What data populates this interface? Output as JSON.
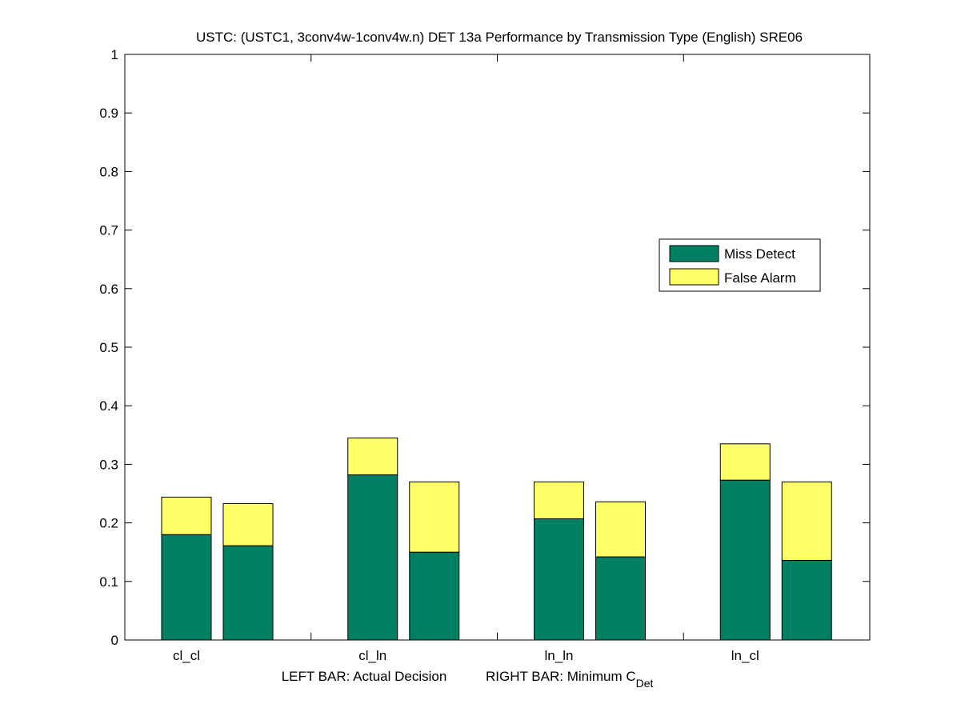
{
  "chart_data": {
    "type": "bar",
    "stacked": true,
    "title": "USTC: (USTC1, 3conv4w-1conv4w.n) DET 13a Performance by Transmission Type (English) SRE06",
    "xlabel_left": "LEFT BAR: Actual Decision",
    "xlabel_right_main": "RIGHT BAR: Minimum C",
    "xlabel_right_sub": "Det",
    "ylabel": "",
    "ylim": [
      0,
      1
    ],
    "yticks": [
      0,
      0.1,
      0.2,
      0.3,
      0.4,
      0.5,
      0.6,
      0.7,
      0.8,
      0.9,
      1
    ],
    "ytick_labels": [
      "0",
      "0.1",
      "0.2",
      "0.3",
      "0.4",
      "0.5",
      "0.6",
      "0.7",
      "0.8",
      "0.9",
      "1"
    ],
    "categories": [
      "cl_cl",
      "cl_ln",
      "ln_ln",
      "ln_cl"
    ],
    "bar_roles": [
      "Actual Decision",
      "Minimum CDet"
    ],
    "series": [
      {
        "name": "Miss Detect",
        "color": "#007f63",
        "actual": [
          0.18,
          0.282,
          0.207,
          0.273
        ],
        "minimum": [
          0.161,
          0.15,
          0.142,
          0.136
        ]
      },
      {
        "name": "False Alarm",
        "color": "#ffff66",
        "actual": [
          0.064,
          0.063,
          0.063,
          0.062
        ],
        "minimum": [
          0.072,
          0.12,
          0.094,
          0.134
        ]
      }
    ],
    "legend": {
      "position": "right-middle",
      "entries": [
        "Miss Detect",
        "False Alarm"
      ]
    },
    "grid": false
  }
}
